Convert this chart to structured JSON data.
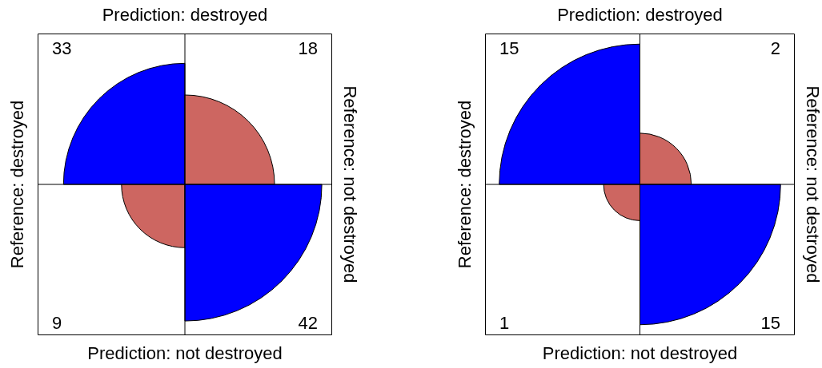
{
  "chart_data": [
    {
      "type": "other",
      "title": "Prediction: destroyed",
      "xlabel": "Prediction: not destroyed",
      "ylabel": "Reference: destroyed",
      "y2label": "Reference: not destroyed",
      "values": [
        33,
        18,
        9,
        42
      ],
      "colors": [
        "#0000ff",
        "#cd6661",
        "#cd6661",
        "#0000ff"
      ],
      "data_labels": true
    },
    {
      "type": "other",
      "title": "Prediction: destroyed",
      "xlabel": "Prediction: not destroyed",
      "ylabel": "Reference: destroyed",
      "y2label": "Reference: not destroyed",
      "values": [
        15,
        2,
        1,
        15
      ],
      "colors": [
        "#0000ff",
        "#cd6661",
        "#cd6661",
        "#0000ff"
      ],
      "data_labels": true
    }
  ]
}
